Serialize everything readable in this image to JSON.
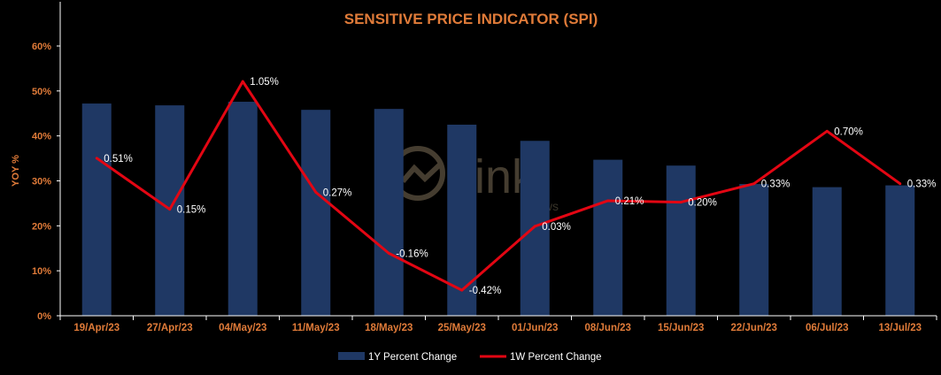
{
  "chart_data": {
    "type": "bar",
    "title": "SENSITIVE PRICE INDICATOR (SPI)",
    "ylabel": "YOY %",
    "xlabel": "",
    "ylim": [
      0,
      60
    ],
    "yticks": [
      "0%",
      "10%",
      "20%",
      "30%",
      "40%",
      "50%",
      "60%"
    ],
    "grid": false,
    "legend_position": "bottom",
    "categories": [
      "19/Apr/23",
      "27/Apr/23",
      "04/May/23",
      "11/May/23",
      "18/May/23",
      "25/May/23",
      "01/Jun/23",
      "08/Jun/23",
      "15/Jun/23",
      "22/Jun/23",
      "06/Jul/23",
      "13/Jul/23"
    ],
    "series": [
      {
        "name": "1Y Percent Change",
        "kind": "bar",
        "color": "#1F3864",
        "values": [
          47.2,
          46.8,
          47.6,
          45.8,
          46.0,
          42.5,
          38.9,
          34.7,
          33.4,
          29.3,
          28.6,
          29.0
        ]
      },
      {
        "name": "1W Percent Change",
        "kind": "line",
        "color": "#E30613",
        "values": [
          0.51,
          0.15,
          1.05,
          0.27,
          -0.16,
          -0.42,
          0.03,
          0.21,
          0.2,
          0.33,
          0.7,
          0.33
        ],
        "labels": [
          "0.51%",
          "0.15%",
          "1.05%",
          "0.27%",
          "-0.16%",
          "-0.42%",
          "0.03%",
          "0.21%",
          "0.20%",
          "0.33%",
          "0.70%",
          "0.33%"
        ]
      }
    ]
  },
  "colors": {
    "background": "#000000",
    "accent": "#E07B39",
    "axis": "#FFFFFF"
  },
  "watermark": {
    "brand": "Link",
    "sub": "News"
  }
}
